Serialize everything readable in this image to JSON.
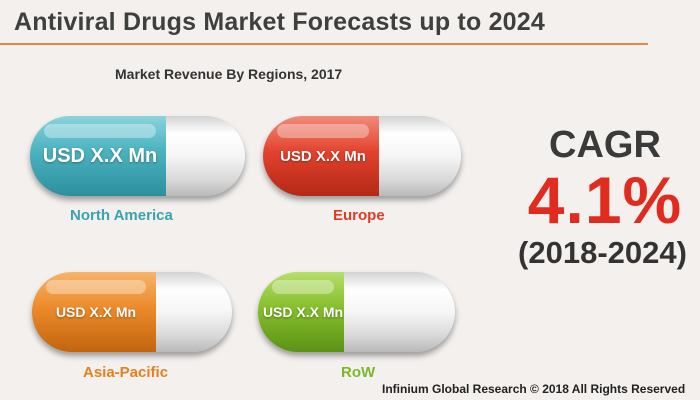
{
  "title": "Antiviral Drugs Market Forecasts up to 2024",
  "subtitle": "Market Revenue By Regions, 2017",
  "regions": [
    {
      "name": "North America",
      "value": "USD X.X Mn",
      "color": "#4fb5c2"
    },
    {
      "name": "Europe",
      "value": "USD X.X Mn",
      "color": "#e2422d"
    },
    {
      "name": "Asia-Pacific",
      "value": "USD X.X Mn",
      "color": "#ec8a2a"
    },
    {
      "name": "RoW",
      "value": "USD X.X Mn",
      "color": "#85bf2b"
    }
  ],
  "cagr": {
    "label": "CAGR",
    "value": "4.1%",
    "period": "(2018-2024)",
    "color": "#e12b1f"
  },
  "footer": "Infinium Global Research © 2018 All Rights Reserved",
  "accent_color": "#e38a45"
}
